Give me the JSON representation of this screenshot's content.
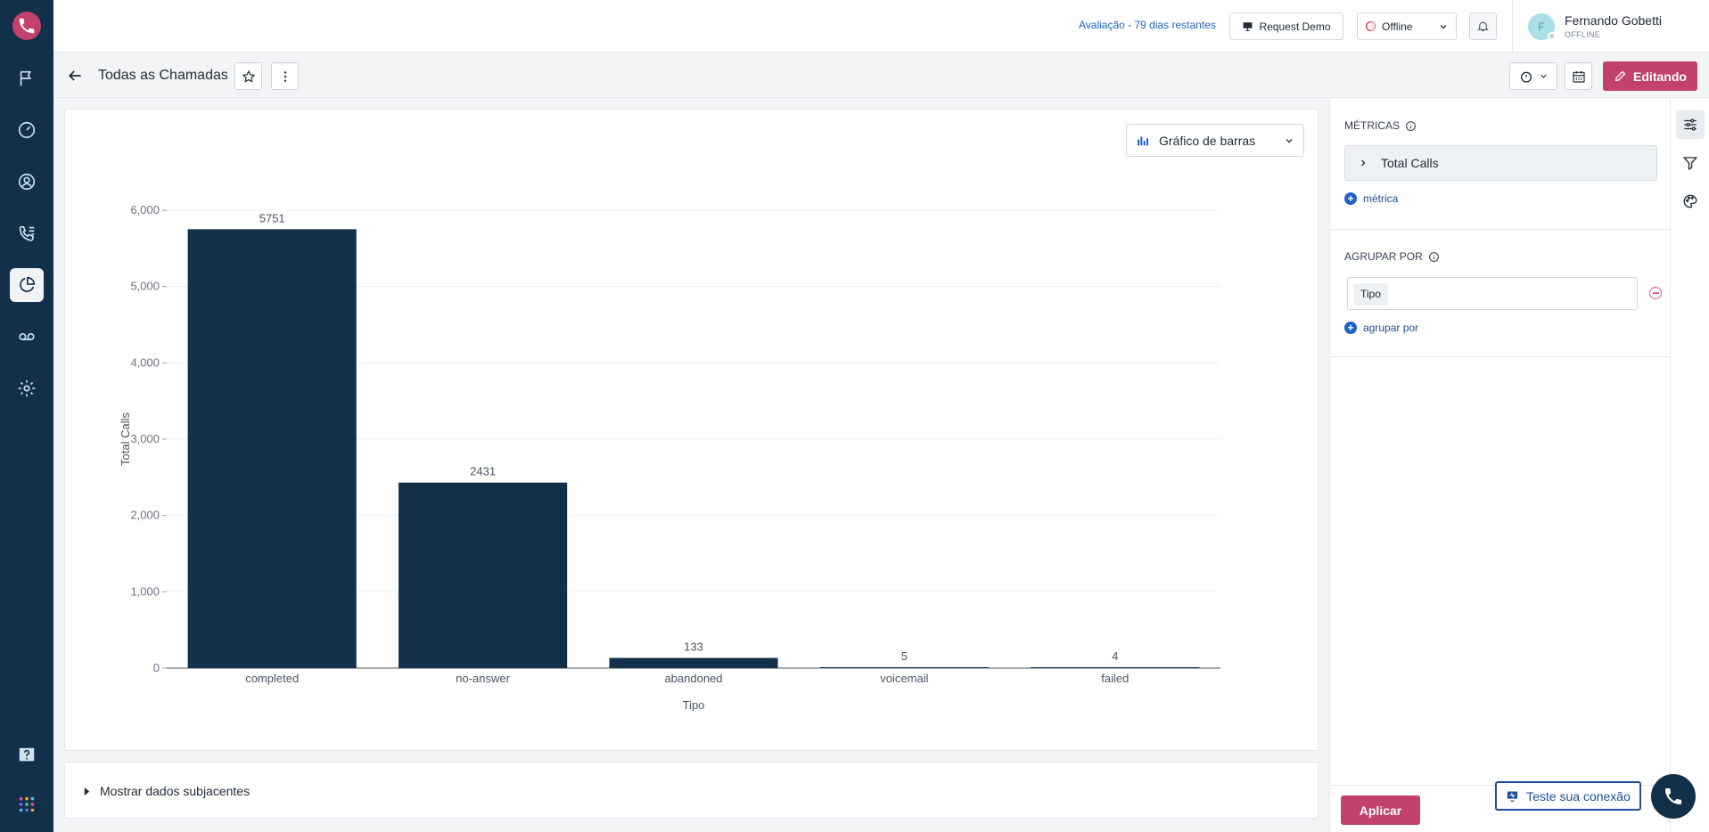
{
  "colors": {
    "rail": "#13304a",
    "accent": "#c2416d",
    "link": "#1e62c7",
    "bar": "#13304a"
  },
  "rail": {
    "items": [
      {
        "name": "flag-icon"
      },
      {
        "name": "gauge-icon"
      },
      {
        "name": "contacts-icon"
      },
      {
        "name": "call-list-icon"
      },
      {
        "name": "reports-icon",
        "active": true
      },
      {
        "name": "voicemail-icon"
      },
      {
        "name": "settings-icon"
      }
    ]
  },
  "topbar": {
    "trial": "Avaliação - 79 dias restantes",
    "request_demo": "Request Demo",
    "status": "Offline",
    "user": {
      "initial": "F",
      "name": "Fernando Gobetti",
      "status": "OFFLINE"
    }
  },
  "titlebar": {
    "title": "Todas as Chamadas",
    "edit": "Editando"
  },
  "chart": {
    "type_label": "Gráfico de barras"
  },
  "chart_data": {
    "type": "bar",
    "categories": [
      "completed",
      "no-answer",
      "abandoned",
      "voicemail",
      "failed"
    ],
    "values": [
      5751,
      2431,
      133,
      5,
      4
    ],
    "xlabel": "Tipo",
    "ylabel": "Total Calls",
    "ylim": [
      0,
      6000
    ],
    "yticks": [
      "0",
      "1,000",
      "2,000",
      "3,000",
      "4,000",
      "5,000",
      "6,000"
    ],
    "ytick_values": [
      0,
      1000,
      2000,
      3000,
      4000,
      5000,
      6000
    ],
    "grid": true
  },
  "underlying": {
    "label": "Mostrar dados subjacentes"
  },
  "panel": {
    "metrics_label": "MÉTRICAS",
    "metric": "Total Calls",
    "add_metric": "métrica",
    "groupby_label": "AGRUPAR POR",
    "group_chip": "Tipo",
    "add_group": "agrupar por",
    "apply": "Aplicar"
  },
  "footer": {
    "test_connection": "Teste sua conexão"
  }
}
